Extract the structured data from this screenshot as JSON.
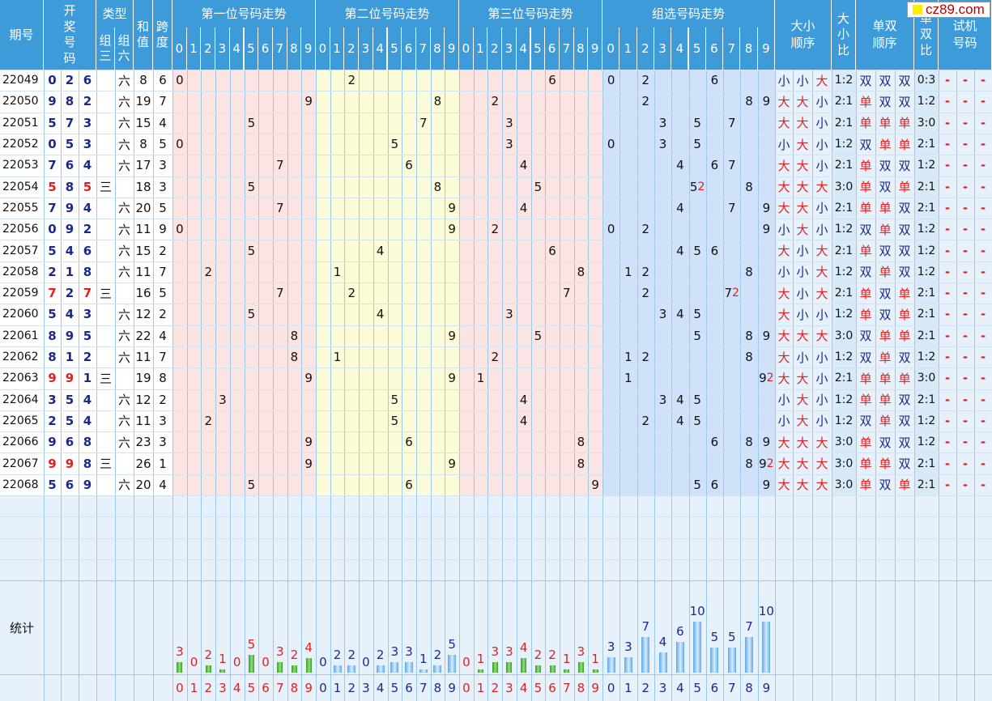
{
  "header": {
    "period": "期号",
    "draw": "开奖号码",
    "type": "类型",
    "type_z3": "组三",
    "type_z6": "组六",
    "sum": "和值",
    "span": "跨度",
    "pos1": "第一位号码走势",
    "pos2": "第二位号码走势",
    "pos3": "第三位号码走势",
    "group": "组选号码走势",
    "bs_order": "大小顺序",
    "bs_ratio": "大小比",
    "oe_order": "单双顺序",
    "oe_ratio": "单双比",
    "trial": "试机号码",
    "digits": [
      "0",
      "1",
      "2",
      "3",
      "4",
      "5",
      "6",
      "7",
      "8",
      "9"
    ]
  },
  "logo": {
    "text": "cz89.com"
  },
  "labels": {
    "stats": "统计",
    "dash": "-"
  },
  "colors": {
    "header_bg": "#3E9BD9",
    "pos1_bg": "#FCE4E2",
    "pos2_bg": "#FCFCD8",
    "group_bg": "#CFE2FA",
    "info_bg": "#E6F1FC",
    "red": "#E02020",
    "navy": "#1A2A8A",
    "ratio_bg": "#D8EAF8"
  },
  "rows": [
    {
      "period": "22049",
      "draw": [
        "0",
        "2",
        "6"
      ],
      "type": "六",
      "sum": "8",
      "span": "6",
      "p1": "0",
      "p2": "2",
      "p3": "6",
      "group": "0 2 6",
      "group_red": "",
      "bs": [
        "小",
        "小",
        "大"
      ],
      "bs_ratio": "1:2",
      "oe": [
        "双",
        "双",
        "双"
      ],
      "oe_ratio": "0:3"
    },
    {
      "period": "22050",
      "draw": [
        "9",
        "8",
        "2"
      ],
      "type": "六",
      "sum": "19",
      "span": "7",
      "p1": "9",
      "p2": "8",
      "p3": "2",
      "group": "2 8 9",
      "group_red": "",
      "bs": [
        "大",
        "大",
        "小"
      ],
      "bs_ratio": "2:1",
      "oe": [
        "单",
        "双",
        "双"
      ],
      "oe_ratio": "1:2"
    },
    {
      "period": "22051",
      "draw": [
        "5",
        "7",
        "3"
      ],
      "type": "六",
      "sum": "15",
      "span": "4",
      "p1": "5",
      "p2": "7",
      "p3": "3",
      "group": "3 5 7",
      "group_red": "",
      "bs": [
        "大",
        "大",
        "小"
      ],
      "bs_ratio": "2:1",
      "oe": [
        "单",
        "单",
        "单"
      ],
      "oe_ratio": "3:0"
    },
    {
      "period": "22052",
      "draw": [
        "0",
        "5",
        "3"
      ],
      "type": "六",
      "sum": "8",
      "span": "5",
      "p1": "0",
      "p2": "5",
      "p3": "3",
      "group": "0 3 5",
      "group_red": "",
      "bs": [
        "小",
        "大",
        "小"
      ],
      "bs_ratio": "1:2",
      "oe": [
        "双",
        "单",
        "单"
      ],
      "oe_ratio": "2:1"
    },
    {
      "period": "22053",
      "draw": [
        "7",
        "6",
        "4"
      ],
      "type": "六",
      "sum": "17",
      "span": "3",
      "p1": "7",
      "p2": "6",
      "p3": "4",
      "group": "4 6 7",
      "group_red": "",
      "bs": [
        "大",
        "大",
        "小"
      ],
      "bs_ratio": "2:1",
      "oe": [
        "单",
        "双",
        "双"
      ],
      "oe_ratio": "1:2"
    },
    {
      "period": "22054",
      "draw": [
        "5",
        "8",
        "5"
      ],
      "type": "三",
      "sum": "18",
      "span": "3",
      "p1": "5",
      "p2": "8",
      "p3": "5",
      "group": "5 8",
      "group_red": "5",
      "bs": [
        "大",
        "大",
        "大"
      ],
      "bs_ratio": "3:0",
      "oe": [
        "单",
        "双",
        "单"
      ],
      "oe_ratio": "2:1"
    },
    {
      "period": "22055",
      "draw": [
        "7",
        "9",
        "4"
      ],
      "type": "六",
      "sum": "20",
      "span": "5",
      "p1": "7",
      "p2": "9",
      "p3": "4",
      "group": "4 7 9",
      "group_red": "",
      "bs": [
        "大",
        "大",
        "小"
      ],
      "bs_ratio": "2:1",
      "oe": [
        "单",
        "单",
        "双"
      ],
      "oe_ratio": "2:1"
    },
    {
      "period": "22056",
      "draw": [
        "0",
        "9",
        "2"
      ],
      "type": "六",
      "sum": "11",
      "span": "9",
      "p1": "0",
      "p2": "9",
      "p3": "2",
      "group": "0 2 9",
      "group_red": "",
      "bs": [
        "小",
        "大",
        "小"
      ],
      "bs_ratio": "1:2",
      "oe": [
        "双",
        "单",
        "双"
      ],
      "oe_ratio": "1:2"
    },
    {
      "period": "22057",
      "draw": [
        "5",
        "4",
        "6"
      ],
      "type": "六",
      "sum": "15",
      "span": "2",
      "p1": "5",
      "p2": "4",
      "p3": "6",
      "group": "4 5 6",
      "group_red": "",
      "bs": [
        "大",
        "小",
        "大"
      ],
      "bs_ratio": "2:1",
      "oe": [
        "单",
        "双",
        "双"
      ],
      "oe_ratio": "1:2"
    },
    {
      "period": "22058",
      "draw": [
        "2",
        "1",
        "8"
      ],
      "type": "六",
      "sum": "11",
      "span": "7",
      "p1": "2",
      "p2": "1",
      "p3": "8",
      "group": "1 2 8",
      "group_red": "",
      "bs": [
        "小",
        "小",
        "大"
      ],
      "bs_ratio": "1:2",
      "oe": [
        "双",
        "单",
        "双"
      ],
      "oe_ratio": "1:2"
    },
    {
      "period": "22059",
      "draw": [
        "7",
        "2",
        "7"
      ],
      "type": "三",
      "sum": "16",
      "span": "5",
      "p1": "7",
      "p2": "2",
      "p3": "7",
      "group": "2 7",
      "group_red": "7",
      "bs": [
        "大",
        "小",
        "大"
      ],
      "bs_ratio": "2:1",
      "oe": [
        "单",
        "双",
        "单"
      ],
      "oe_ratio": "2:1"
    },
    {
      "period": "22060",
      "draw": [
        "5",
        "4",
        "3"
      ],
      "type": "六",
      "sum": "12",
      "span": "2",
      "p1": "5",
      "p2": "4",
      "p3": "3",
      "group": "3 4 5",
      "group_red": "",
      "bs": [
        "大",
        "小",
        "小"
      ],
      "bs_ratio": "1:2",
      "oe": [
        "单",
        "双",
        "单"
      ],
      "oe_ratio": "2:1"
    },
    {
      "period": "22061",
      "draw": [
        "8",
        "9",
        "5"
      ],
      "type": "六",
      "sum": "22",
      "span": "4",
      "p1": "8",
      "p2": "9",
      "p3": "5",
      "group": "5 8 9",
      "group_red": "",
      "bs": [
        "大",
        "大",
        "大"
      ],
      "bs_ratio": "3:0",
      "oe": [
        "双",
        "单",
        "单"
      ],
      "oe_ratio": "2:1"
    },
    {
      "period": "22062",
      "draw": [
        "8",
        "1",
        "2"
      ],
      "type": "六",
      "sum": "11",
      "span": "7",
      "p1": "8",
      "p2": "1",
      "p3": "2",
      "group": "1 2 8",
      "group_red": "",
      "bs": [
        "大",
        "小",
        "小"
      ],
      "bs_ratio": "1:2",
      "oe": [
        "双",
        "单",
        "双"
      ],
      "oe_ratio": "1:2"
    },
    {
      "period": "22063",
      "draw": [
        "9",
        "9",
        "1"
      ],
      "type": "三",
      "sum": "19",
      "span": "8",
      "p1": "9",
      "p2": "9",
      "p3": "1",
      "group": "1 9",
      "group_red": "9",
      "bs": [
        "大",
        "大",
        "小"
      ],
      "bs_ratio": "2:1",
      "oe": [
        "单",
        "单",
        "单"
      ],
      "oe_ratio": "3:0"
    },
    {
      "period": "22064",
      "draw": [
        "3",
        "5",
        "4"
      ],
      "type": "六",
      "sum": "12",
      "span": "2",
      "p1": "3",
      "p2": "5",
      "p3": "4",
      "group": "3 4 5",
      "group_red": "",
      "bs": [
        "小",
        "大",
        "小"
      ],
      "bs_ratio": "1:2",
      "oe": [
        "单",
        "单",
        "双"
      ],
      "oe_ratio": "2:1"
    },
    {
      "period": "22065",
      "draw": [
        "2",
        "5",
        "4"
      ],
      "type": "六",
      "sum": "11",
      "span": "3",
      "p1": "2",
      "p2": "5",
      "p3": "4",
      "group": "2 4 5",
      "group_red": "",
      "bs": [
        "小",
        "大",
        "小"
      ],
      "bs_ratio": "1:2",
      "oe": [
        "双",
        "单",
        "双"
      ],
      "oe_ratio": "1:2"
    },
    {
      "period": "22066",
      "draw": [
        "9",
        "6",
        "8"
      ],
      "type": "六",
      "sum": "23",
      "span": "3",
      "p1": "9",
      "p2": "6",
      "p3": "8",
      "group": "6 8 9",
      "group_red": "",
      "bs": [
        "大",
        "大",
        "大"
      ],
      "bs_ratio": "3:0",
      "oe": [
        "单",
        "双",
        "双"
      ],
      "oe_ratio": "1:2"
    },
    {
      "period": "22067",
      "draw": [
        "9",
        "9",
        "8"
      ],
      "type": "三",
      "sum": "26",
      "span": "1",
      "p1": "9",
      "p2": "9",
      "p3": "8",
      "group": "8 9",
      "group_red": "9",
      "bs": [
        "大",
        "大",
        "大"
      ],
      "bs_ratio": "3:0",
      "oe": [
        "单",
        "单",
        "双"
      ],
      "oe_ratio": "2:1"
    },
    {
      "period": "22068",
      "draw": [
        "5",
        "6",
        "9"
      ],
      "type": "六",
      "sum": "20",
      "span": "4",
      "p1": "5",
      "p2": "6",
      "p3": "9",
      "group": "5 6 9",
      "group_red": "",
      "bs": [
        "大",
        "大",
        "大"
      ],
      "bs_ratio": "3:0",
      "oe": [
        "单",
        "双",
        "单"
      ],
      "oe_ratio": "2:1"
    }
  ],
  "stats": {
    "pos1": [
      3,
      0,
      2,
      1,
      0,
      5,
      0,
      3,
      2,
      4
    ],
    "pos2": [
      0,
      2,
      2,
      0,
      2,
      3,
      3,
      1,
      2,
      5
    ],
    "pos3": [
      0,
      1,
      3,
      3,
      4,
      2,
      2,
      1,
      3,
      1
    ],
    "group": [
      3,
      3,
      7,
      4,
      6,
      10,
      5,
      5,
      7,
      10
    ]
  }
}
